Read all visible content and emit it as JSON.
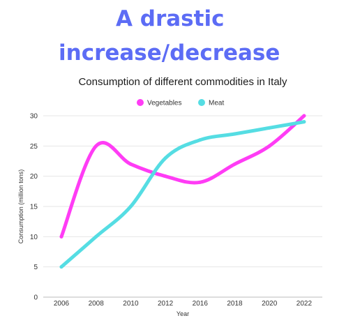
{
  "headline": {
    "line1": "A drastic",
    "line2": "increase/decrease"
  },
  "colors": {
    "headline": "#5c6cf5",
    "vegetables": "#ff3cf5",
    "meat": "#55dde3",
    "grid": "#e6e6e6"
  },
  "chart_data": {
    "type": "line",
    "title": "Consumption of different commodities in Italy",
    "xlabel": "Year",
    "ylabel": "Consumption (million tons)",
    "categories": [
      "2006",
      "2008",
      "2010",
      "2012",
      "2016",
      "2018",
      "2020",
      "2022"
    ],
    "ylim": [
      0,
      30
    ],
    "yticks": [
      "0",
      "5",
      "10",
      "15",
      "20",
      "25",
      "30"
    ],
    "grid": true,
    "legend_position": "top-center",
    "series": [
      {
        "name": "Vegetables",
        "color": "#ff3cf5",
        "values": [
          10,
          25,
          22,
          20,
          19,
          22,
          25,
          30
        ]
      },
      {
        "name": "Meat",
        "color": "#55dde3",
        "values": [
          5,
          10,
          15,
          23,
          26,
          27,
          28,
          29
        ]
      }
    ]
  }
}
